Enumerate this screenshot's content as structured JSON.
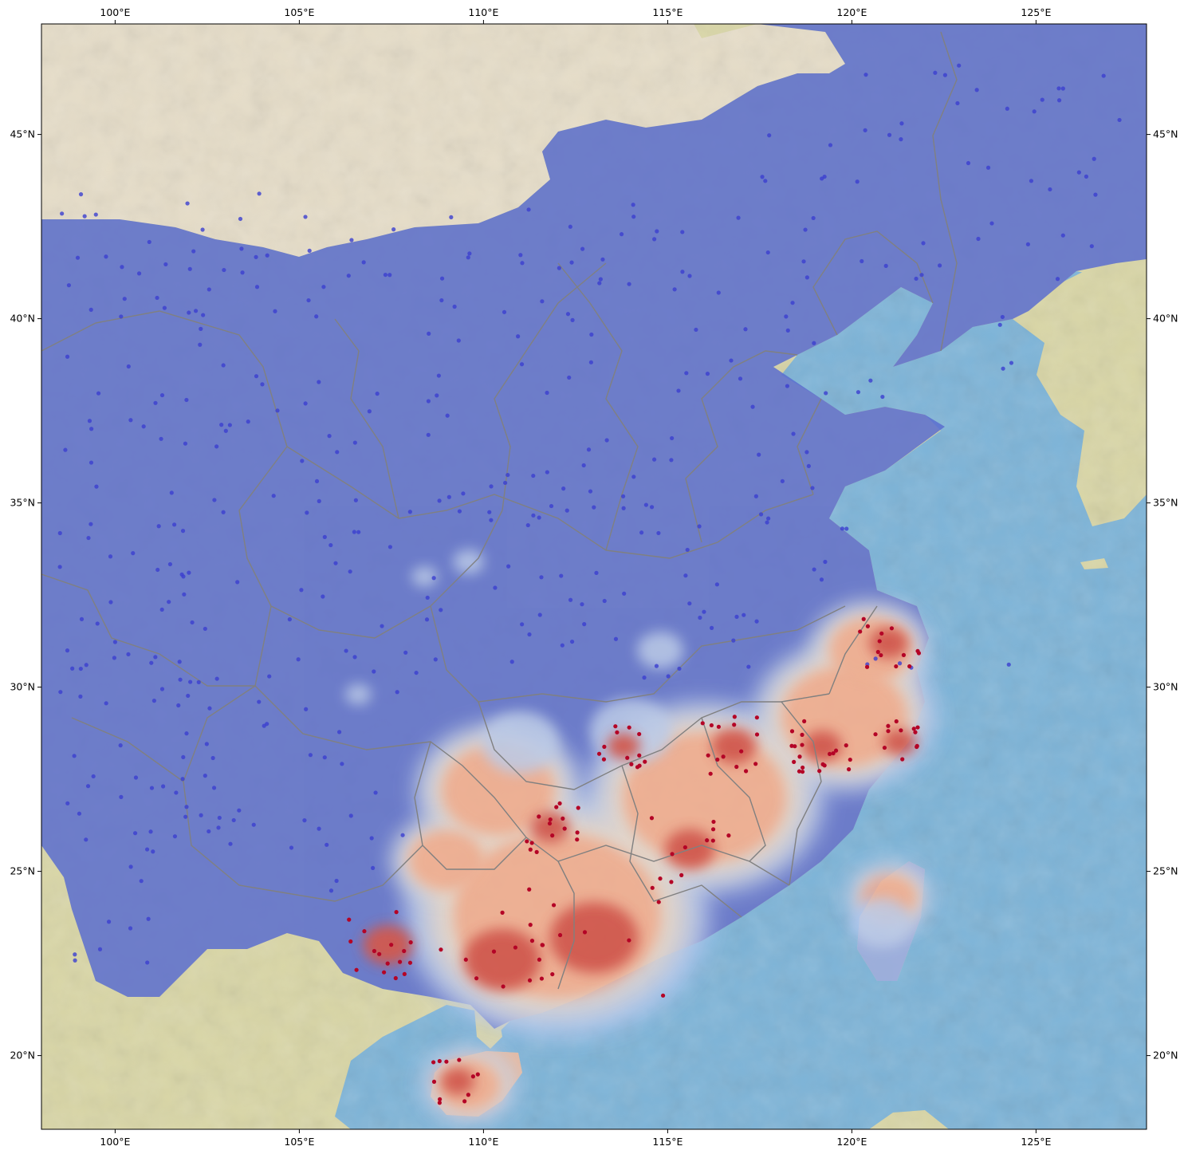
{
  "map": {
    "axes": {
      "lon_min": 98,
      "lon_max": 128,
      "lat_min": 18,
      "lat_max": 48,
      "lon_ticks": [
        {
          "value": 100,
          "label": "100°E"
        },
        {
          "value": 105,
          "label": "105°E"
        },
        {
          "value": 110,
          "label": "110°E"
        },
        {
          "value": 115,
          "label": "115°E"
        },
        {
          "value": 120,
          "label": "120°E"
        },
        {
          "value": 125,
          "label": "125°E"
        }
      ],
      "lat_ticks": [
        {
          "value": 45,
          "label": "45°N"
        },
        {
          "value": 40,
          "label": "40°N"
        },
        {
          "value": 35,
          "label": "35°N"
        },
        {
          "value": 30,
          "label": "30°N"
        },
        {
          "value": 25,
          "label": "25°N"
        },
        {
          "value": 20,
          "label": "20°N"
        }
      ]
    },
    "colors": {
      "ocean": "#7db4d8",
      "land_foreign": "#d9d6a6",
      "desert": "#e6ddc8",
      "overlay_low": "#5a6dcf",
      "overlay_mid": "#b7c9f2",
      "overlay_neutral": "#e8d6cc",
      "overlay_warm": "#f2a88e",
      "overlay_hot": "#d0453f",
      "border": "#808080",
      "station_low": "#3b3fd0",
      "station_high": "#b40426"
    },
    "hot_zones": [
      {
        "lon": 113.0,
        "lat": 23.2,
        "r": 1.6,
        "level": 3
      },
      {
        "lon": 110.5,
        "lat": 22.6,
        "r": 1.4,
        "level": 3
      },
      {
        "lon": 107.4,
        "lat": 23.0,
        "r": 0.9,
        "level": 3
      },
      {
        "lon": 115.6,
        "lat": 25.6,
        "r": 0.9,
        "level": 3
      },
      {
        "lon": 116.8,
        "lat": 28.4,
        "r": 0.8,
        "level": 3
      },
      {
        "lon": 119.2,
        "lat": 28.4,
        "r": 0.7,
        "level": 3
      },
      {
        "lon": 121.3,
        "lat": 28.5,
        "r": 0.6,
        "level": 3
      },
      {
        "lon": 121.0,
        "lat": 31.2,
        "r": 0.7,
        "level": 3
      },
      {
        "lon": 111.8,
        "lat": 26.2,
        "r": 0.7,
        "level": 2
      },
      {
        "lon": 113.8,
        "lat": 28.4,
        "r": 0.6,
        "level": 2
      },
      {
        "lon": 109.3,
        "lat": 19.3,
        "r": 0.6,
        "level": 2
      }
    ],
    "warm_zones": [
      {
        "lon": 112.0,
        "lat": 23.8,
        "r": 3.3
      },
      {
        "lon": 116.0,
        "lat": 27.0,
        "r": 2.6
      },
      {
        "lon": 119.8,
        "lat": 29.2,
        "r": 2.0
      },
      {
        "lon": 120.5,
        "lat": 31.0,
        "r": 1.3
      },
      {
        "lon": 110.4,
        "lat": 27.2,
        "r": 1.8
      },
      {
        "lon": 109.0,
        "lat": 25.3,
        "r": 1.2
      },
      {
        "lon": 109.6,
        "lat": 19.2,
        "r": 1.0
      },
      {
        "lon": 121.0,
        "lat": 24.3,
        "r": 0.9
      }
    ],
    "cool_zones": [
      {
        "lon": 114.0,
        "lat": 28.8,
        "r": 1.6
      },
      {
        "lon": 111.0,
        "lat": 28.5,
        "r": 1.5
      },
      {
        "lon": 109.6,
        "lat": 33.4,
        "r": 0.6
      },
      {
        "lon": 108.4,
        "lat": 33.0,
        "r": 0.5
      },
      {
        "lon": 106.6,
        "lat": 29.8,
        "r": 0.5
      },
      {
        "lon": 120.8,
        "lat": 23.6,
        "r": 1.2
      },
      {
        "lon": 114.8,
        "lat": 31.0,
        "r": 0.9
      }
    ],
    "stations_low_count": 420,
    "stations_high_count": 150
  }
}
